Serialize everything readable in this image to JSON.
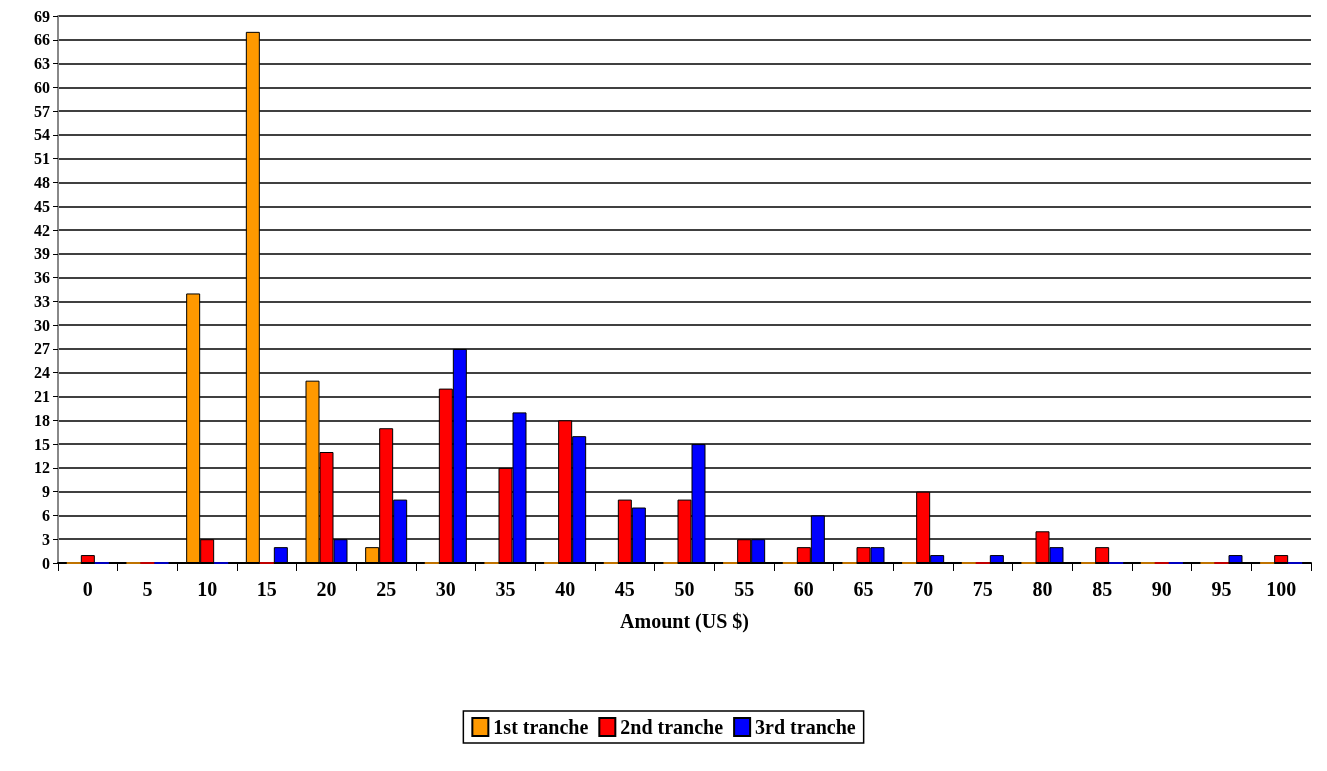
{
  "chart_data": {
    "type": "bar",
    "xlabel": "Amount (US $)",
    "categories": [
      "0",
      "5",
      "10",
      "15",
      "20",
      "25",
      "30",
      "35",
      "40",
      "45",
      "50",
      "55",
      "60",
      "65",
      "70",
      "75",
      "80",
      "85",
      "90",
      "95",
      "100"
    ],
    "series": [
      {
        "name": "1st tranche",
        "color": "#ff9900",
        "values": [
          0,
          0,
          34,
          67,
          23,
          2,
          0,
          0,
          0,
          0,
          0,
          0,
          0,
          0,
          0,
          0,
          0,
          0,
          0,
          0,
          0
        ]
      },
      {
        "name": "2nd tranche",
        "color": "#ff0000",
        "values": [
          1,
          0,
          3,
          0,
          14,
          17,
          22,
          12,
          18,
          8,
          8,
          3,
          2,
          2,
          9,
          0,
          4,
          2,
          0,
          0,
          1
        ]
      },
      {
        "name": "3rd tranche",
        "color": "#0000ff",
        "values": [
          0,
          0,
          0,
          2,
          3,
          8,
          27,
          19,
          16,
          7,
          15,
          3,
          6,
          2,
          1,
          1,
          2,
          0,
          0,
          1,
          0
        ]
      }
    ],
    "ylim": [
      0,
      69
    ],
    "yticks": [
      0,
      3,
      6,
      9,
      12,
      15,
      18,
      21,
      24,
      27,
      30,
      33,
      36,
      39,
      42,
      45,
      48,
      51,
      54,
      57,
      60,
      63,
      66,
      69
    ],
    "grid": "y",
    "legend": "bottom"
  }
}
